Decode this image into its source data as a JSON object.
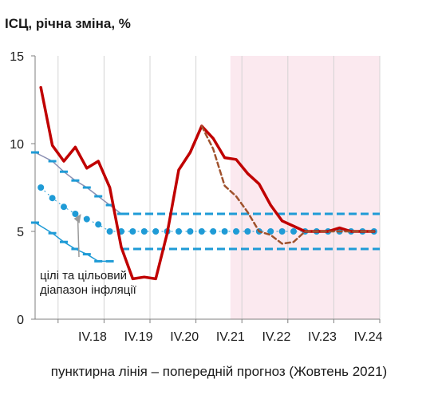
{
  "chart_data": {
    "type": "line",
    "title": "ІСЦ, річна зміна, %",
    "footnote": "пунктирна лінія – попередній прогноз (Жовтень 2021)",
    "xlabel": "",
    "ylabel": "",
    "ylim": [
      0,
      15
    ],
    "y_ticks": [
      0,
      5,
      10,
      15
    ],
    "x_range": [
      2017.5,
      2025.0
    ],
    "x_tick_labels": [
      "IV.18",
      "IV.19",
      "IV.20",
      "IV.21",
      "IV.22",
      "IV.23",
      "IV.24"
    ],
    "x_tick_values": [
      2018.75,
      2019.75,
      2020.75,
      2021.75,
      2022.75,
      2023.75,
      2024.75
    ],
    "forecast_shading": {
      "from": 2021.75,
      "to": 2025.0,
      "color": "#fbe9ef"
    },
    "grid": "vertical",
    "annotation": {
      "text_lines": [
        "цілі та цільовий",
        "діапазон інфляції"
      ],
      "points_to": [
        2018.5,
        6.0
      ]
    },
    "series": [
      {
        "style": "solid",
        "color": "#c00000",
        "x": [
          2017.625,
          2017.875,
          2018.125,
          2018.375,
          2018.625,
          2018.875,
          2019.125,
          2019.375,
          2019.625,
          2019.875,
          2020.125,
          2020.375,
          2020.625,
          2020.875,
          2021.125,
          2021.375,
          2021.625,
          2021.875,
          2022.125,
          2022.375,
          2022.625,
          2022.875,
          2023.125,
          2023.375,
          2023.625,
          2023.875,
          2024.125,
          2024.375,
          2024.625,
          2024.875
        ],
        "y": [
          13.2,
          9.9,
          9.0,
          9.8,
          8.6,
          9.0,
          7.5,
          4.1,
          2.3,
          2.4,
          2.3,
          4.9,
          8.5,
          9.5,
          11.0,
          10.3,
          9.2,
          9.1,
          8.3,
          7.7,
          6.5,
          5.6,
          5.3,
          5.0,
          5.0,
          5.0,
          5.2,
          5.0,
          5.0,
          5.0
        ]
      },
      {
        "style": "dashed",
        "color": "#a0522d",
        "x": [
          2021.125,
          2021.375,
          2021.625,
          2021.875,
          2022.125,
          2022.375,
          2022.625,
          2022.875,
          2023.125,
          2023.375,
          2023.625,
          2023.875,
          2024.125,
          2024.375,
          2024.625,
          2024.875
        ],
        "y": [
          11.0,
          9.7,
          7.6,
          7.0,
          6.1,
          5.0,
          4.8,
          4.3,
          4.4,
          5.0,
          5.0,
          5.0,
          5.0,
          5.0,
          5.0,
          5.0
        ]
      }
    ],
    "targets": {
      "color": "#1f9bd6",
      "upper_band_color": "#8a8fb2",
      "center_dotted": {
        "x": [
          2017.625,
          2017.875,
          2018.125,
          2018.375,
          2018.625,
          2018.875,
          2019.125,
          2019.375,
          2019.625,
          2019.875,
          2020.125,
          2020.375,
          2020.625,
          2020.875,
          2021.125,
          2021.375,
          2021.625,
          2021.875,
          2022.125,
          2022.375,
          2022.625,
          2022.875,
          2023.125,
          2023.375,
          2023.625,
          2023.875,
          2024.125,
          2024.375,
          2024.625,
          2024.875
        ],
        "y": [
          7.5,
          6.9,
          6.4,
          6.0,
          5.7,
          5.4,
          5.0,
          5.0,
          5.0,
          5.0,
          5.0,
          5.0,
          5.0,
          5.0,
          5.0,
          5.0,
          5.0,
          5.0,
          5.0,
          5.0,
          5.0,
          5.0,
          5.0,
          5.0,
          5.0,
          5.0,
          5.0,
          5.0,
          5.0,
          5.0
        ]
      },
      "upper_band": {
        "x": [
          2017.5,
          2017.875,
          2018.125,
          2018.375,
          2018.625,
          2018.875,
          2019.125,
          2019.375
        ],
        "y": [
          9.5,
          9.0,
          8.4,
          7.9,
          7.5,
          7.0,
          6.5,
          6.0
        ]
      },
      "lower_band": {
        "x": [
          2017.5,
          2017.875,
          2018.125,
          2018.375,
          2018.625,
          2018.875,
          2019.125
        ],
        "y": [
          5.5,
          4.9,
          4.4,
          4.0,
          3.7,
          3.3,
          3.3
        ]
      },
      "upper_dashed": {
        "from": 2019.375,
        "to": 2025.0,
        "y": 6.0
      },
      "lower_dashed": {
        "from": 2019.375,
        "to": 2025.0,
        "y": 4.0
      }
    }
  }
}
